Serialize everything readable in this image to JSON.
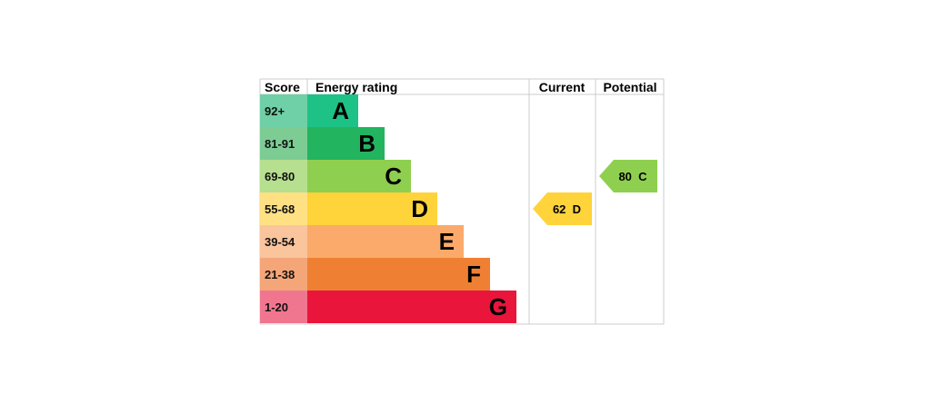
{
  "chart_data": {
    "type": "bar",
    "headers": {
      "score": "Score",
      "rating": "Energy rating",
      "current": "Current",
      "potential": "Potential"
    },
    "bands": [
      {
        "letter": "A",
        "score": "92+",
        "color": "#1ec286",
        "score_bg": "#6fcfa6"
      },
      {
        "letter": "B",
        "score": "81-91",
        "color": "#22b45f",
        "score_bg": "#7ccc94"
      },
      {
        "letter": "C",
        "score": "69-80",
        "color": "#8fcf4f",
        "score_bg": "#b6df8f"
      },
      {
        "letter": "D",
        "score": "55-68",
        "color": "#ffd33a",
        "score_bg": "#ffe184"
      },
      {
        "letter": "E",
        "score": "39-54",
        "color": "#fbaa6b",
        "score_bg": "#fac49d"
      },
      {
        "letter": "F",
        "score": "21-38",
        "color": "#ef8033",
        "score_bg": "#f4a678"
      },
      {
        "letter": "G",
        "score": "1-20",
        "color": "#e9153b",
        "score_bg": "#f07690"
      }
    ],
    "current": {
      "value": 62,
      "band": "D",
      "label": "62  D",
      "color": "#ffd33a"
    },
    "potential": {
      "value": 80,
      "band": "C",
      "label": "80  C",
      "color": "#8fcf4f"
    }
  }
}
